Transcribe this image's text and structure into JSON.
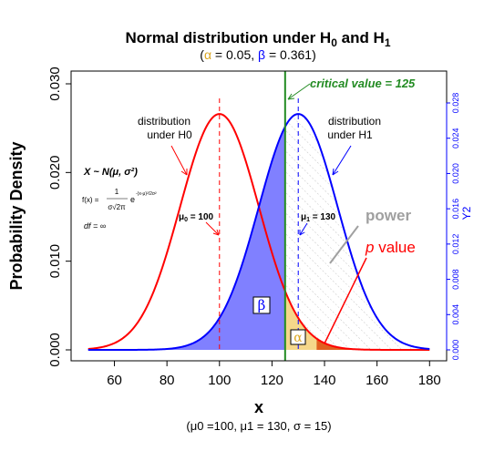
{
  "title": {
    "main": "Normal distribution under H",
    "sub0": "0",
    "and": " and H",
    "sub1": "1"
  },
  "subtitle": {
    "open": "(",
    "alpha_sym": "α",
    "alpha_text": " =  0.05, ",
    "beta_sym": "β",
    "beta_text": " = 0.361)"
  },
  "xlabel": "x",
  "ylabel": "Probability Density",
  "y2label": "Y2",
  "caption": "(μ0 =100, μ1 = 130, σ = 15)",
  "annotations": {
    "critical_value": "critical value = 125",
    "dist_h0_line1": "distribution",
    "dist_h0_line2": "under H0",
    "dist_h1_line1": "distribution",
    "dist_h1_line2": "under H1",
    "power": "power",
    "p_italic": "p",
    "p_value": " value",
    "beta_box": "β",
    "alpha_box": "α",
    "mu0_sym": "μ",
    "mu0_sub": "0",
    "mu0_val": " = 100",
    "mu1_sym": "μ",
    "mu1_sub": "1",
    "mu1_val": " = 130",
    "formula_x": "X ~ N(μ, σ²)",
    "formula_fx": "f(x) =",
    "formula_num": "1",
    "formula_den": "σ√2π",
    "formula_exp": "e",
    "formula_exp_sup": "-(x-μ)²/2σ²",
    "formula_df": "df = ∞"
  },
  "colors": {
    "h0_curve": "#ff0000",
    "h1_curve": "#0000ff",
    "beta_fill": "#8080ff",
    "alpha_fill": "#f5d78a",
    "p_fill": "#e06020",
    "critical_line": "#228b22",
    "power_label": "#a0a0a0",
    "alpha_text": "#daa520",
    "beta_text": "#0000ff"
  },
  "chart_data": {
    "type": "line",
    "mu0": 100,
    "mu1": 130,
    "sigma": 15,
    "alpha": 0.05,
    "beta": 0.361,
    "critical_value": 125,
    "observed_value": 137,
    "xlim": [
      50,
      180
    ],
    "ylim": [
      0,
      0.03
    ],
    "y2lim": [
      0,
      0.028
    ],
    "xticks": [
      60,
      80,
      100,
      120,
      140,
      160,
      180
    ],
    "yticks": [
      0.0,
      0.01,
      0.02,
      0.03
    ],
    "ytick_labels": [
      "0.000",
      "0.010",
      "0.020",
      "0.030"
    ],
    "y2ticks": [
      0.0,
      0.004,
      0.008,
      0.012,
      0.016,
      0.02,
      0.024,
      0.028
    ],
    "y2tick_labels": [
      "0.000",
      "0.004",
      "0.008",
      "0.012",
      "0.016",
      "0.020",
      "0.024",
      "0.028"
    ],
    "series": [
      {
        "name": "distribution under H0",
        "mean": 100,
        "sd": 15
      },
      {
        "name": "distribution under H1",
        "mean": 130,
        "sd": 15
      }
    ]
  }
}
